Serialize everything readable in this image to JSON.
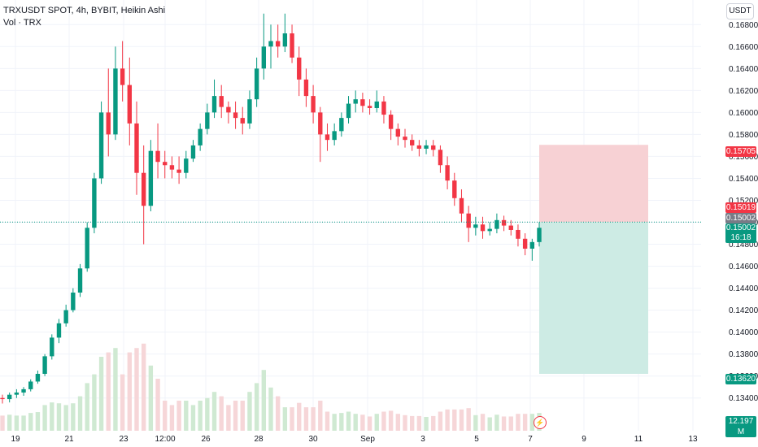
{
  "legend": {
    "title": "TRXUSDT SPOT, 4h, BYBIT, Heikin Ashi",
    "volume_label": "Vol · TRX"
  },
  "currency": "USDT",
  "price_axis": {
    "ticks": [
      "0.16800",
      "0.16600",
      "0.16400",
      "0.16200",
      "0.16000",
      "0.15800",
      "0.15600",
      "0.15400",
      "0.15200",
      "0.15000",
      "0.14800",
      "0.14600",
      "0.14400",
      "0.14200",
      "0.14000",
      "0.13800",
      "0.13600",
      "0.13400"
    ]
  },
  "time_axis": {
    "ticks": [
      "19",
      "21",
      "23",
      "12:00",
      "26",
      "28",
      "30",
      "Sep",
      "3",
      "5",
      "7",
      "9",
      "11",
      "13"
    ]
  },
  "tags": {
    "target": "0.15705",
    "entry": "0.15019",
    "last_gray": "0.15002",
    "last_price": "0.15002",
    "countdown": "16:18",
    "stop": "0.13620",
    "volume": "12.197 M"
  },
  "colors": {
    "up": "#089981",
    "down": "#f23645",
    "profit_zone": "#f7d1d4",
    "loss_zone": "#cdebe4",
    "vol_up": "#cfe9d2",
    "vol_down": "#f6d6d8"
  },
  "chart_data": {
    "type": "candlestick",
    "symbol": "TRXUSDT",
    "interval": "4h",
    "exchange": "BYBIT",
    "style": "Heikin Ashi",
    "y_range": [
      0.1325,
      0.1695
    ],
    "candles": [
      [
        0.134,
        0.1343,
        0.1335,
        0.1339
      ],
      [
        0.1339,
        0.1345,
        0.1336,
        0.1343
      ],
      [
        0.1343,
        0.1348,
        0.134,
        0.1345
      ],
      [
        0.1345,
        0.135,
        0.1342,
        0.1348
      ],
      [
        0.1348,
        0.1357,
        0.1346,
        0.1355
      ],
      [
        0.1355,
        0.1365,
        0.1353,
        0.1362
      ],
      [
        0.1362,
        0.138,
        0.136,
        0.1378
      ],
      [
        0.1378,
        0.1398,
        0.1375,
        0.1395
      ],
      [
        0.1395,
        0.1412,
        0.139,
        0.1408
      ],
      [
        0.1408,
        0.1425,
        0.1405,
        0.142
      ],
      [
        0.142,
        0.144,
        0.1418,
        0.1436
      ],
      [
        0.1436,
        0.1462,
        0.1432,
        0.1458
      ],
      [
        0.1458,
        0.15,
        0.1455,
        0.1495
      ],
      [
        0.1495,
        0.1545,
        0.149,
        0.154
      ],
      [
        0.154,
        0.161,
        0.1535,
        0.16
      ],
      [
        0.16,
        0.164,
        0.156,
        0.158
      ],
      [
        0.158,
        0.166,
        0.1575,
        0.164
      ],
      [
        0.164,
        0.1665,
        0.161,
        0.1625
      ],
      [
        0.1625,
        0.165,
        0.157,
        0.159
      ],
      [
        0.159,
        0.161,
        0.1525,
        0.1545
      ],
      [
        0.1545,
        0.157,
        0.148,
        0.1515
      ],
      [
        0.1515,
        0.1575,
        0.151,
        0.1565
      ],
      [
        0.1565,
        0.159,
        0.154,
        0.1555
      ],
      [
        0.1555,
        0.1565,
        0.154,
        0.1552
      ],
      [
        0.1552,
        0.156,
        0.154,
        0.1548
      ],
      [
        0.1548,
        0.156,
        0.1535,
        0.1545
      ],
      [
        0.1545,
        0.1565,
        0.154,
        0.1558
      ],
      [
        0.1558,
        0.1575,
        0.1555,
        0.157
      ],
      [
        0.157,
        0.159,
        0.1565,
        0.1585
      ],
      [
        0.1585,
        0.1608,
        0.158,
        0.16
      ],
      [
        0.16,
        0.163,
        0.1595,
        0.1615
      ],
      [
        0.1615,
        0.1625,
        0.1595,
        0.1605
      ],
      [
        0.1605,
        0.161,
        0.159,
        0.16
      ],
      [
        0.16,
        0.161,
        0.1585,
        0.1595
      ],
      [
        0.1595,
        0.1605,
        0.158,
        0.159
      ],
      [
        0.159,
        0.162,
        0.1585,
        0.1612
      ],
      [
        0.1612,
        0.165,
        0.1605,
        0.164
      ],
      [
        0.164,
        0.169,
        0.163,
        0.166
      ],
      [
        0.166,
        0.168,
        0.164,
        0.1665
      ],
      [
        0.1665,
        0.168,
        0.165,
        0.166
      ],
      [
        0.166,
        0.169,
        0.1655,
        0.1672
      ],
      [
        0.1672,
        0.168,
        0.1645,
        0.165
      ],
      [
        0.165,
        0.166,
        0.1615,
        0.163
      ],
      [
        0.163,
        0.164,
        0.1605,
        0.1615
      ],
      [
        0.1615,
        0.1625,
        0.159,
        0.16
      ],
      [
        0.16,
        0.1605,
        0.1555,
        0.158
      ],
      [
        0.158,
        0.159,
        0.1565,
        0.1575
      ],
      [
        0.1575,
        0.159,
        0.157,
        0.1583
      ],
      [
        0.1583,
        0.16,
        0.1578,
        0.1595
      ],
      [
        0.1595,
        0.1615,
        0.159,
        0.1608
      ],
      [
        0.1608,
        0.162,
        0.16,
        0.1612
      ],
      [
        0.1612,
        0.1618,
        0.16,
        0.1606
      ],
      [
        0.1606,
        0.1612,
        0.1598,
        0.1604
      ],
      [
        0.1604,
        0.162,
        0.16,
        0.161
      ],
      [
        0.161,
        0.1615,
        0.159,
        0.1598
      ],
      [
        0.1598,
        0.1602,
        0.1575,
        0.1585
      ],
      [
        0.1585,
        0.159,
        0.157,
        0.1578
      ],
      [
        0.1578,
        0.1585,
        0.1568,
        0.1575
      ],
      [
        0.1575,
        0.158,
        0.1565,
        0.157
      ],
      [
        0.157,
        0.1575,
        0.156,
        0.1567
      ],
      [
        0.1567,
        0.1575,
        0.1562,
        0.157
      ],
      [
        0.157,
        0.1575,
        0.156,
        0.1566
      ],
      [
        0.1566,
        0.157,
        0.1545,
        0.1552
      ],
      [
        0.1552,
        0.156,
        0.153,
        0.1538
      ],
      [
        0.1538,
        0.1545,
        0.1515,
        0.1522
      ],
      [
        0.1522,
        0.153,
        0.15,
        0.1508
      ],
      [
        0.1508,
        0.1515,
        0.1482,
        0.1495
      ],
      [
        0.1495,
        0.1505,
        0.1488,
        0.1498
      ],
      [
        0.1498,
        0.1505,
        0.1485,
        0.1492
      ],
      [
        0.1492,
        0.15,
        0.1488,
        0.1494
      ],
      [
        0.1494,
        0.1508,
        0.149,
        0.1502
      ],
      [
        0.1502,
        0.1506,
        0.1492,
        0.1497
      ],
      [
        0.1497,
        0.1502,
        0.1488,
        0.1493
      ],
      [
        0.1493,
        0.1498,
        0.1478,
        0.1485
      ],
      [
        0.1485,
        0.149,
        0.147,
        0.1476
      ],
      [
        0.1476,
        0.1485,
        0.1465,
        0.1482
      ],
      [
        0.1482,
        0.15,
        0.1478,
        0.1495
      ]
    ],
    "volume_max": 30
  }
}
